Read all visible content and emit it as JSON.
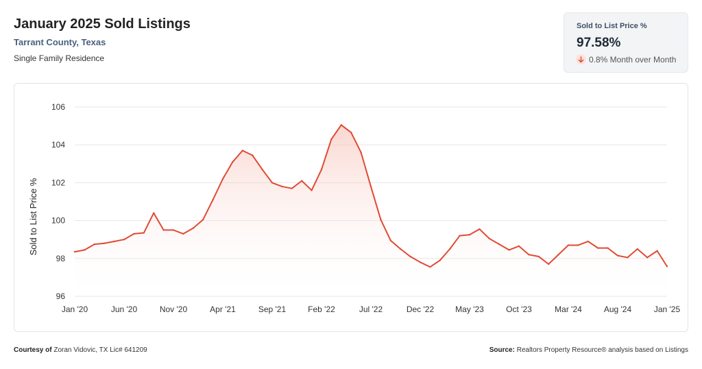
{
  "header": {
    "title": "January 2025 Sold Listings",
    "location": "Tarrant County, Texas",
    "property_type": "Single Family Residence"
  },
  "kpi": {
    "label": "Sold to List Price %",
    "value": "97.58%",
    "change": "0.8% Month over Month",
    "direction": "down",
    "direction_icon": "arrow-down-icon"
  },
  "footer": {
    "courtesy_prefix": "Courtesy of",
    "courtesy_text": "Zoran Vidovic, TX Lic# 641209",
    "source_prefix": "Source:",
    "source_text": "Realtors Property Resource® analysis based on Listings"
  },
  "colors": {
    "line": "#e04a33",
    "fill_top": "#f6b6aa",
    "fill_bottom": "#ffffff",
    "grid": "#e6e6e6",
    "subtitle": "#4a5f7d"
  },
  "chart_data": {
    "type": "area",
    "ylabel": "Sold to List Price %",
    "xlabel": "",
    "ylim": [
      96,
      106
    ],
    "yticks": [
      96,
      98,
      100,
      102,
      104,
      106
    ],
    "grid": true,
    "xtick_labels": [
      "Jan '20",
      "Jun '20",
      "Nov '20",
      "Apr '21",
      "Sep '21",
      "Feb '22",
      "Jul '22",
      "Dec '22",
      "May '23",
      "Oct '23",
      "Mar '24",
      "Aug '24",
      "Jan '25"
    ],
    "x": [
      "Jan '20",
      "Feb '20",
      "Mar '20",
      "Apr '20",
      "May '20",
      "Jun '20",
      "Jul '20",
      "Aug '20",
      "Sep '20",
      "Oct '20",
      "Nov '20",
      "Dec '20",
      "Jan '21",
      "Feb '21",
      "Mar '21",
      "Apr '21",
      "May '21",
      "Jun '21",
      "Jul '21",
      "Aug '21",
      "Sep '21",
      "Oct '21",
      "Nov '21",
      "Dec '21",
      "Jan '22",
      "Feb '22",
      "Mar '22",
      "Apr '22",
      "May '22",
      "Jun '22",
      "Jul '22",
      "Aug '22",
      "Sep '22",
      "Oct '22",
      "Nov '22",
      "Dec '22",
      "Jan '23",
      "Feb '23",
      "Mar '23",
      "Apr '23",
      "May '23",
      "Jun '23",
      "Jul '23",
      "Aug '23",
      "Sep '23",
      "Oct '23",
      "Nov '23",
      "Dec '23",
      "Jan '24",
      "Feb '24",
      "Mar '24",
      "Apr '24",
      "May '24",
      "Jun '24",
      "Jul '24",
      "Aug '24",
      "Sep '24",
      "Oct '24",
      "Nov '24",
      "Dec '24",
      "Jan '25"
    ],
    "series": [
      {
        "values": [
          98.35,
          98.45,
          98.75,
          98.8,
          98.9,
          99.0,
          99.3,
          99.35,
          100.4,
          99.5,
          99.5,
          99.3,
          99.6,
          100.05,
          101.1,
          102.2,
          103.1,
          103.7,
          103.45,
          102.7,
          102.0,
          101.8,
          101.7,
          102.1,
          101.6,
          102.7,
          104.3,
          105.05,
          104.65,
          103.6,
          101.8,
          100.05,
          98.95,
          98.5,
          98.1,
          97.8,
          97.55,
          97.9,
          98.5,
          99.2,
          99.25,
          99.55,
          99.05,
          98.75,
          98.45,
          98.65,
          98.2,
          98.1,
          97.7,
          98.2,
          98.7,
          98.7,
          98.9,
          98.55,
          98.55,
          98.15,
          98.05,
          98.5,
          98.05,
          98.4,
          97.58
        ]
      }
    ]
  }
}
